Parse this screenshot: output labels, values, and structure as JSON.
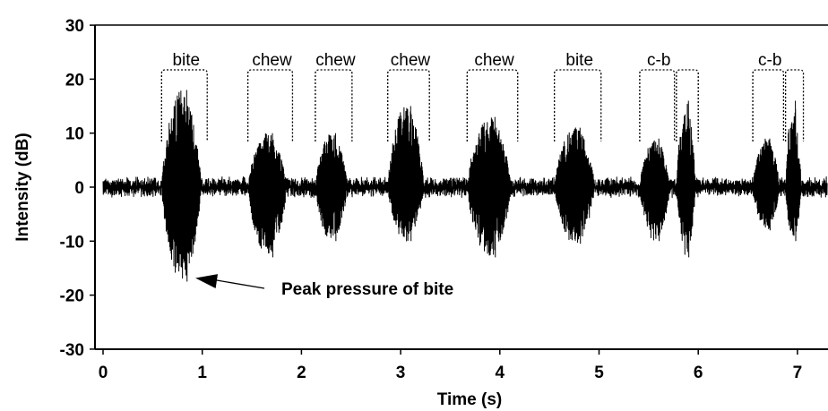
{
  "chart_data": {
    "type": "line",
    "xlabel": "Time (s)",
    "ylabel": "Intensity (dB)",
    "xlim": [
      0,
      7.3
    ],
    "ylim": [
      -30,
      30
    ],
    "xticks": [
      "0",
      "1",
      "2",
      "3",
      "4",
      "5",
      "6",
      "7"
    ],
    "xtick_values": [
      0,
      1,
      2,
      3,
      4,
      5,
      6,
      7
    ],
    "yticks": [
      "30",
      "20",
      "10",
      "0",
      "-10",
      "-20",
      "-30"
    ],
    "ytick_values": [
      30,
      20,
      10,
      0,
      -10,
      -20,
      -30
    ],
    "grid": false,
    "baseline_noise": 2,
    "segments": [
      {
        "label": "bite",
        "start": 0.59,
        "end": 1.05,
        "peak_max": 18,
        "peak_min": -17.5
      },
      {
        "label": "chew",
        "start": 1.46,
        "end": 1.91,
        "peak_max": 10,
        "peak_min": -13
      },
      {
        "label": "chew",
        "start": 2.14,
        "end": 2.51,
        "peak_max": 10,
        "peak_min": -10
      },
      {
        "label": "chew",
        "start": 2.87,
        "end": 3.29,
        "peak_max": 15,
        "peak_min": -10
      },
      {
        "label": "chew",
        "start": 3.67,
        "end": 4.18,
        "peak_max": 13,
        "peak_min": -13
      },
      {
        "label": "bite",
        "start": 4.55,
        "end": 5.02,
        "peak_max": 11,
        "peak_min": -10.5
      },
      {
        "label": "c-b",
        "start": 5.41,
        "end": 5.76,
        "peak_max": 9,
        "peak_min": -10
      },
      {
        "label": "",
        "start": 5.78,
        "end": 6.0,
        "peak_max": 16,
        "peak_min": -13
      },
      {
        "label": "c-b",
        "start": 6.55,
        "end": 6.86,
        "peak_max": 9,
        "peak_min": -8
      },
      {
        "label": "",
        "start": 6.88,
        "end": 7.06,
        "peak_max": 16,
        "peak_min": -10
      }
    ],
    "annotation": {
      "text": "Peak pressure of bite",
      "points_to": {
        "x": 0.85,
        "y": -17.5
      }
    }
  }
}
